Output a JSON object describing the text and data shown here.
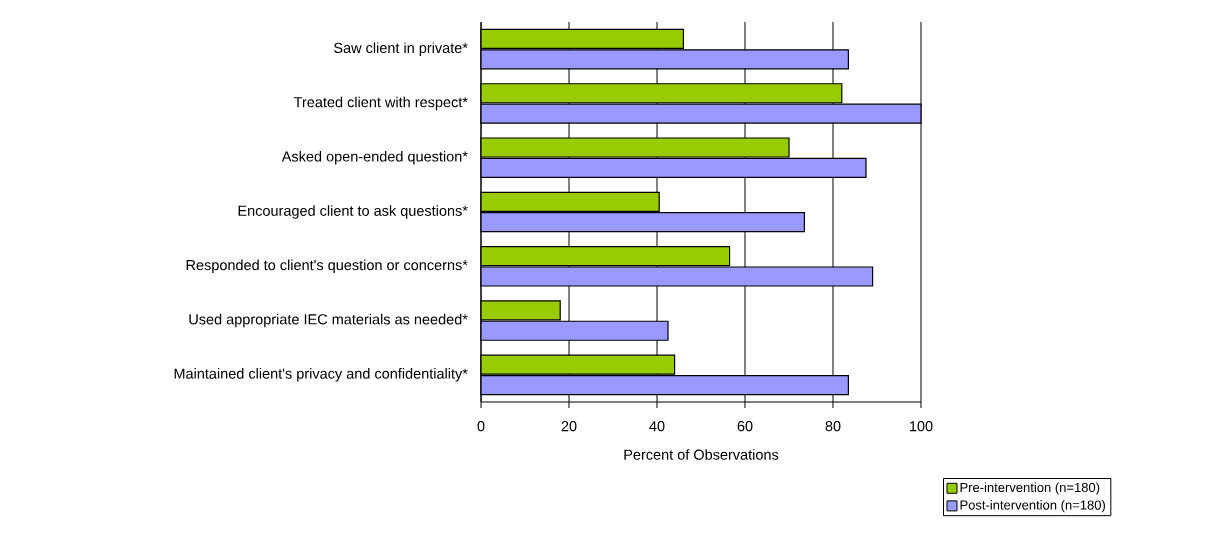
{
  "chart_data": {
    "type": "bar",
    "orientation": "horizontal",
    "xlabel": "Percent of Observations",
    "categories": [
      "Saw client in private*",
      "Treated client with respect*",
      "Asked open-ended question*",
      "Encouraged client to ask questions*",
      "Responded to client's question or concerns*",
      "Used appropriate IEC materials as needed*",
      "Maintained client's privacy and confidentiality*"
    ],
    "series": [
      {
        "name": "Pre-intervention (n=180)",
        "color": "#99cc00",
        "values": [
          46,
          82,
          70,
          40.5,
          56.5,
          18,
          44
        ]
      },
      {
        "name": "Post-intervention (n=180)",
        "color": "#9999ff",
        "values": [
          83.5,
          100,
          87.5,
          73.5,
          89,
          42.5,
          83.5
        ]
      }
    ],
    "xlim": [
      0,
      100
    ],
    "xticks": [
      0,
      20,
      40,
      60,
      80,
      100
    ],
    "grid": "x",
    "legend": "bottom right"
  }
}
